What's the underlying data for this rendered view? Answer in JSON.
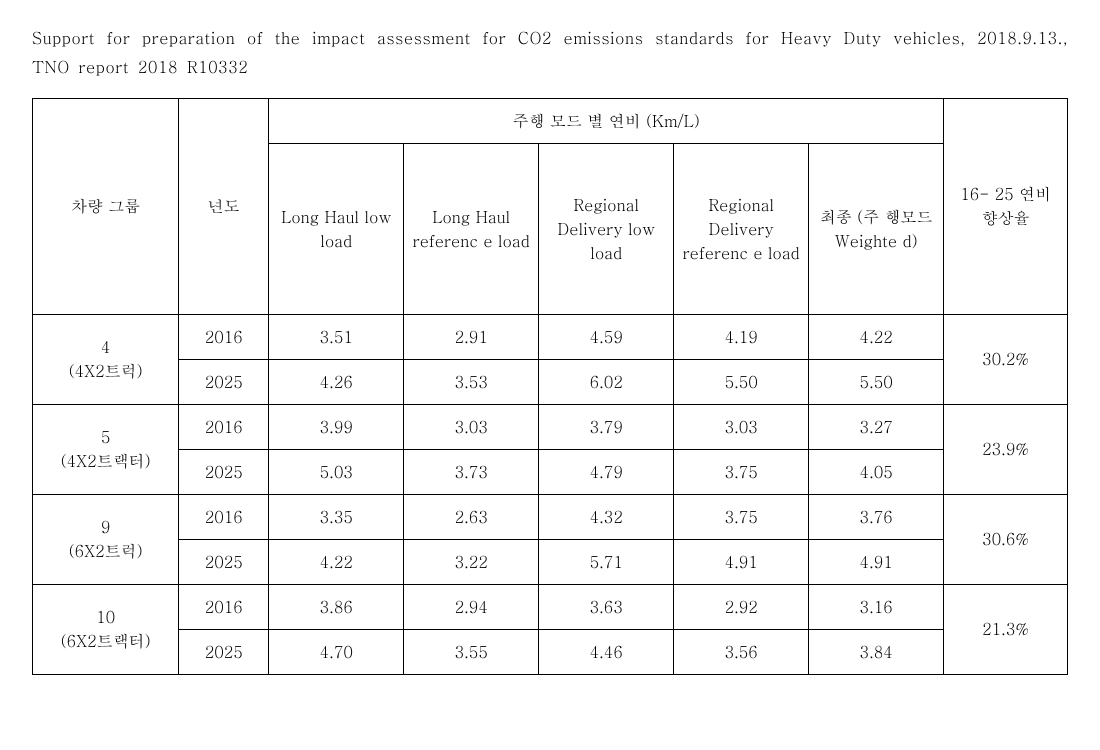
{
  "caption": "Support for preparation of the impact assessment for CO2 emissions standards for Heavy Duty vehicles, 2018.9.13., TNO report 2018 R10332",
  "headers": {
    "vehicle_group": "차량 그룹",
    "year": "년도",
    "mode_group": "주행 모드 별 연비 (Km/L)",
    "cols": [
      "Long Haul low load",
      "Long Haul referenc e load",
      "Regional Delivery low load",
      "Regional Delivery referenc e load",
      "최종 (주 행모드 Weighte d)"
    ],
    "improve": "16- 25 연비 향상율"
  },
  "groups": [
    {
      "name": "4 (4X2트럭)",
      "rows": [
        {
          "year": "2016",
          "vals": [
            "3.51",
            "2.91",
            "4.59",
            "4.19",
            "4.22"
          ]
        },
        {
          "year": "2025",
          "vals": [
            "4.26",
            "3.53",
            "6.02",
            "5.50",
            "5.50"
          ]
        }
      ],
      "improve": "30.2%"
    },
    {
      "name": "5 (4X2트랙터)",
      "rows": [
        {
          "year": "2016",
          "vals": [
            "3.99",
            "3.03",
            "3.79",
            "3.03",
            "3.27"
          ]
        },
        {
          "year": "2025",
          "vals": [
            "5.03",
            "3.73",
            "4.79",
            "3.75",
            "4.05"
          ]
        }
      ],
      "improve": "23.9%"
    },
    {
      "name": "9 (6X2트럭)",
      "rows": [
        {
          "year": "2016",
          "vals": [
            "3.35",
            "2.63",
            "4.32",
            "3.75",
            "3.76"
          ]
        },
        {
          "year": "2025",
          "vals": [
            "4.22",
            "3.22",
            "5.71",
            "4.91",
            "4.91"
          ]
        }
      ],
      "improve": "30.6%"
    },
    {
      "name": "10 (6X2트랙터)",
      "rows": [
        {
          "year": "2016",
          "vals": [
            "3.86",
            "2.94",
            "3.63",
            "2.92",
            "3.16"
          ]
        },
        {
          "year": "2025",
          "vals": [
            "4.70",
            "3.55",
            "4.46",
            "3.56",
            "3.84"
          ]
        }
      ],
      "improve": "21.3%"
    }
  ]
}
